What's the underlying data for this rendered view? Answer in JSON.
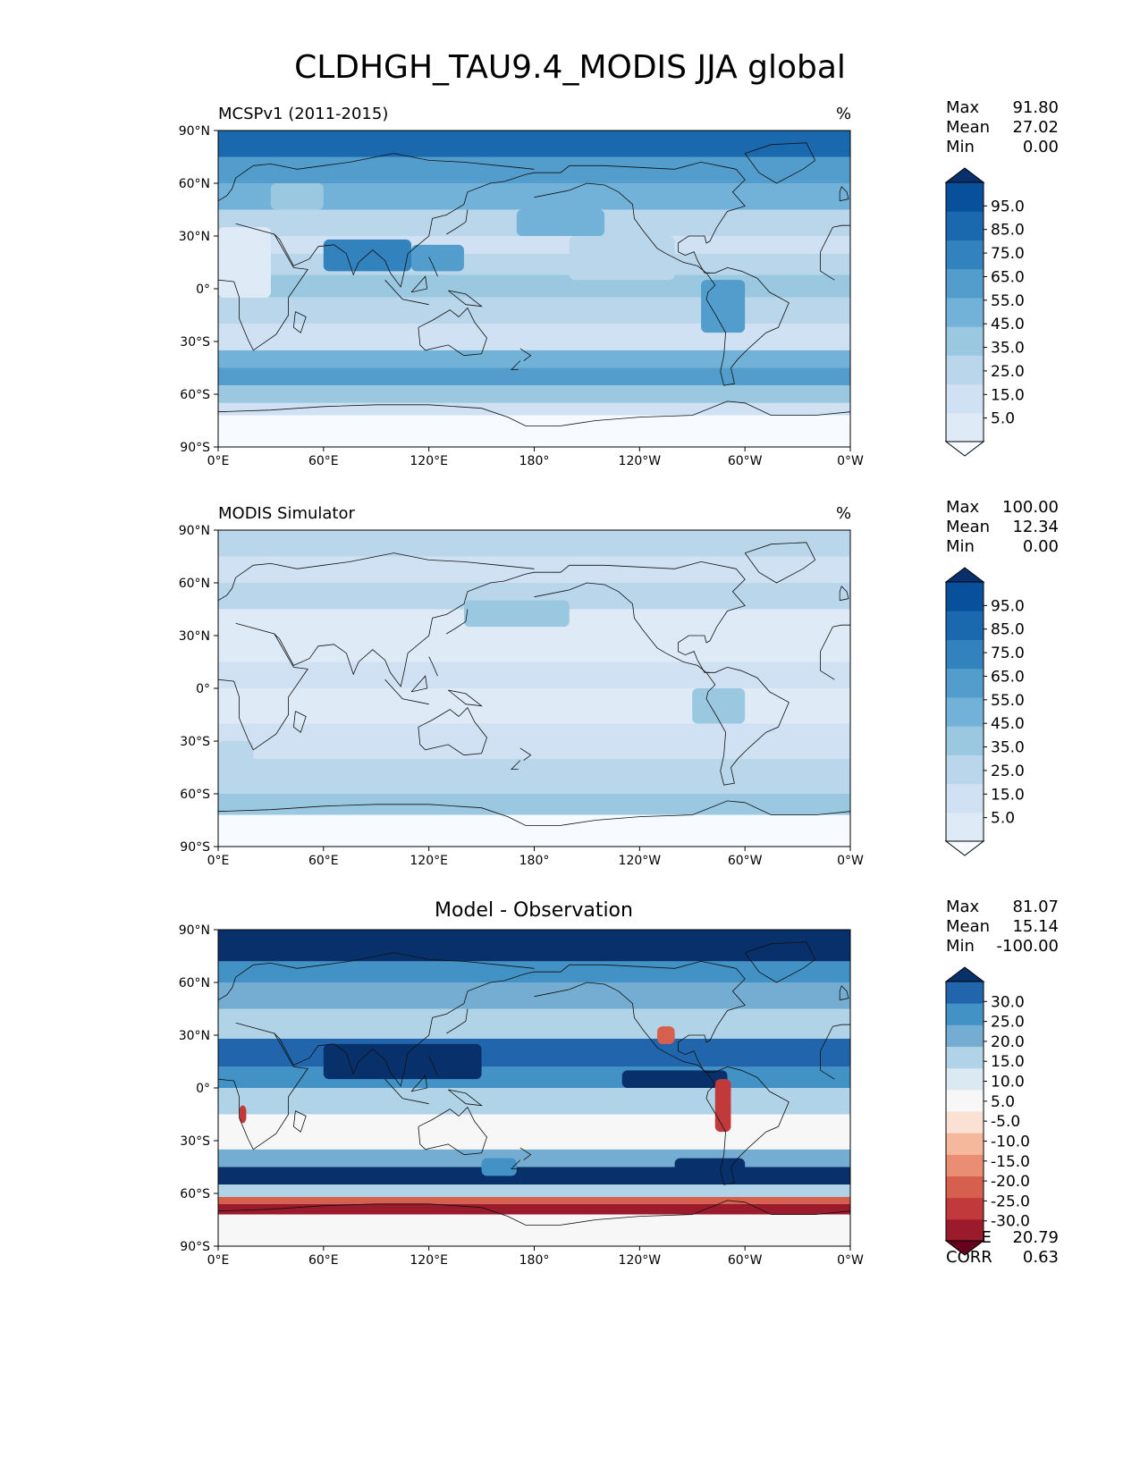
{
  "title": "CLDHGH_TAU9.4_MODIS JJA global",
  "panels": [
    {
      "id": "mcsp",
      "title_left": "MCSPv1 (2011-2015)",
      "title_center": "",
      "units": "%",
      "stats": [
        {
          "label": "Max",
          "value": "91.80"
        },
        {
          "label": "Mean",
          "value": "27.02"
        },
        {
          "label": "Min",
          "value": "0.00"
        }
      ],
      "extra_stats": [],
      "colorbar": {
        "labels": [
          "95.0",
          "85.0",
          "75.0",
          "65.0",
          "55.0",
          "45.0",
          "35.0",
          "25.0",
          "15.0",
          "5.0"
        ],
        "colors": [
          "#f7fbff",
          "#deebf7",
          "#cfe1f2",
          "#b9d6ea",
          "#9ac8e0",
          "#73b2d8",
          "#529dcc",
          "#3282be",
          "#1a68ad",
          "#08509b",
          "#08306b"
        ]
      }
    },
    {
      "id": "modis",
      "title_left": "MODIS Simulator",
      "title_center": "",
      "units": "%",
      "stats": [
        {
          "label": "Max",
          "value": "100.00"
        },
        {
          "label": "Mean",
          "value": "12.34"
        },
        {
          "label": "Min",
          "value": "0.00"
        }
      ],
      "extra_stats": [],
      "colorbar": {
        "labels": [
          "95.0",
          "85.0",
          "75.0",
          "65.0",
          "55.0",
          "45.0",
          "35.0",
          "25.0",
          "15.0",
          "5.0"
        ],
        "colors": [
          "#f7fbff",
          "#deebf7",
          "#cfe1f2",
          "#b9d6ea",
          "#9ac8e0",
          "#73b2d8",
          "#529dcc",
          "#3282be",
          "#1a68ad",
          "#08509b",
          "#08306b"
        ]
      }
    },
    {
      "id": "diff",
      "title_left": "",
      "title_center": "Model - Observation",
      "units": "",
      "stats": [
        {
          "label": "Max",
          "value": "81.07"
        },
        {
          "label": "Mean",
          "value": "15.14"
        },
        {
          "label": "Min",
          "value": "-100.00"
        }
      ],
      "extra_stats": [
        {
          "label": "RMSE",
          "value": "20.79"
        },
        {
          "label": "CORR",
          "value": "0.63"
        }
      ],
      "colorbar": {
        "labels": [
          "30.0",
          "25.0",
          "20.0",
          "15.0",
          "10.0",
          "5.0",
          "-5.0",
          "-10.0",
          "-15.0",
          "-20.0",
          "-25.0",
          "-30.0"
        ],
        "colors": [
          "#67001f",
          "#9b1b2c",
          "#c2393b",
          "#d6604d",
          "#ea8e73",
          "#f6b89c",
          "#fbe1d3",
          "#f7f7f7",
          "#dbe9f3",
          "#b1d3e7",
          "#74add1",
          "#4292c6",
          "#2166ac",
          "#08306b"
        ]
      }
    }
  ],
  "chart_data": {
    "type": "heatmap",
    "xaxis_ticks": [
      "0°E",
      "60°E",
      "120°E",
      "180°",
      "120°W",
      "60°W",
      "0°W"
    ],
    "yaxis_ticks": [
      "90°N",
      "60°N",
      "30°N",
      "0°",
      "30°S",
      "60°S",
      "90°S"
    ],
    "x_range": [
      0,
      360
    ],
    "y_range": [
      -90,
      90
    ]
  }
}
